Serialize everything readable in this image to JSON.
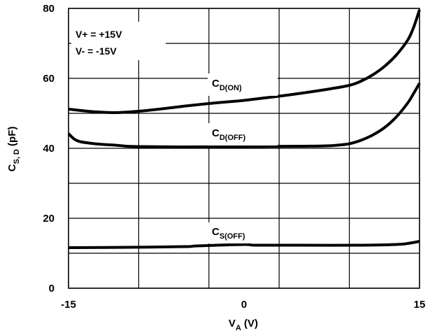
{
  "chart_data": {
    "type": "line",
    "xlabel": {
      "main": "V",
      "sub": "A",
      "suffix": " (V)"
    },
    "ylabel": {
      "main": "C",
      "sub": "S, D",
      "suffix": " (pF)"
    },
    "xlim": [
      -15,
      15
    ],
    "ylim": [
      0,
      80
    ],
    "xticks": [
      "-15",
      "0",
      "15"
    ],
    "yticks": [
      "0",
      "20",
      "40",
      "60",
      "80"
    ],
    "grid": true,
    "conditions": [
      "V+ = +15V",
      "V- = -15V"
    ],
    "series": [
      {
        "label_main": "C",
        "label_sub": "D(ON)",
        "x": [
          -15,
          -13,
          -11,
          -9,
          -7,
          -5,
          -3,
          -1,
          0,
          1,
          3,
          5,
          7,
          9,
          10,
          11,
          12,
          13,
          14,
          14.5,
          15
        ],
        "y": [
          51.2,
          50.5,
          50.2,
          50.6,
          51.3,
          52.1,
          52.8,
          53.4,
          53.7,
          54.1,
          54.9,
          55.8,
          56.8,
          58.0,
          59.2,
          61.0,
          63.4,
          66.6,
          71.0,
          74.6,
          79.6
        ]
      },
      {
        "label_main": "C",
        "label_sub": "D(OFF)",
        "x": [
          -15,
          -14.5,
          -14,
          -13,
          -12,
          -11,
          -10,
          -9,
          -5,
          0,
          5,
          7,
          8,
          9,
          10,
          11,
          12,
          13,
          14,
          14.5,
          15
        ],
        "y": [
          44.2,
          42.6,
          41.9,
          41.4,
          41.1,
          40.9,
          40.6,
          40.5,
          40.4,
          40.5,
          40.6,
          40.7,
          40.9,
          41.3,
          42.3,
          43.8,
          45.9,
          48.9,
          53.0,
          55.7,
          58.6
        ]
      },
      {
        "label_main": "C",
        "label_sub": "S(OFF)",
        "x": [
          -15,
          -10,
          -5,
          -4,
          0,
          1,
          5,
          10,
          13,
          14,
          15
        ],
        "y": [
          11.6,
          11.7,
          11.9,
          12.1,
          12.5,
          12.3,
          12.3,
          12.3,
          12.5,
          12.8,
          13.4
        ]
      }
    ]
  }
}
